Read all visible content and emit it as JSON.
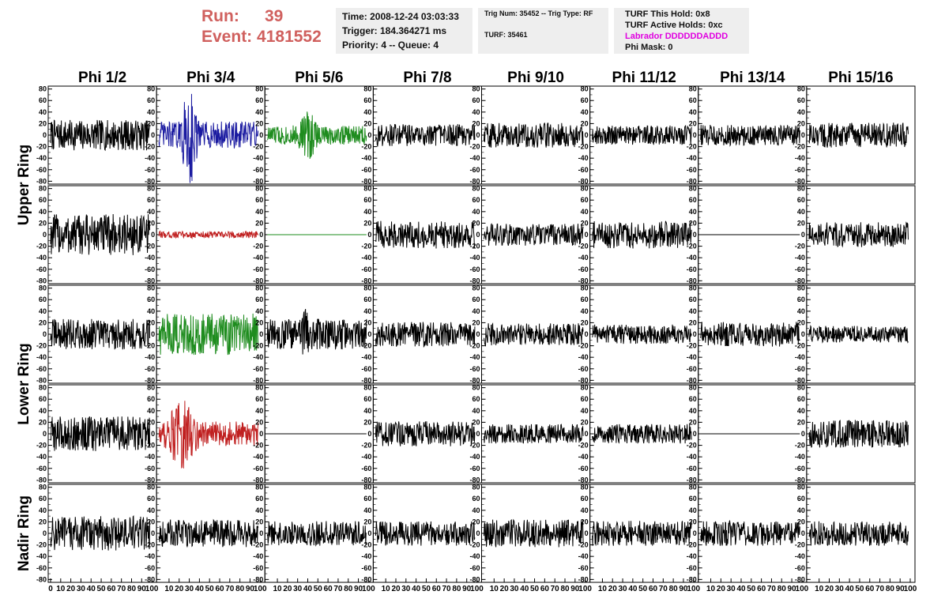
{
  "header": {
    "run_label": "Run:",
    "run_value": "39",
    "event_label": "Event:",
    "event_value": "4181552",
    "time": "Time: 2008-12-24 03:03:33",
    "trigger": "Trigger: 184.364271 ms",
    "priority": "Priority: 4 -- Queue: 4",
    "trig_num": "Trig Num: 35452 -- Trig Type: RF",
    "turf": "TURF: 35461",
    "turf_hold": "TURF This Hold: 0x8",
    "turf_active": "TURF Active Holds: 0xc",
    "labrador": "Labrador DDDDDDADDD",
    "phi_mask": "Phi Mask: 0"
  },
  "colors": {
    "labrador": "#e000e0",
    "run_text": "#d0605e",
    "panel_bg": "#eeeeee"
  },
  "chart_data": {
    "type": "line",
    "columns": [
      "Phi 1/2",
      "Phi 3/4",
      "Phi 5/6",
      "Phi 7/8",
      "Phi 9/10",
      "Phi 11/12",
      "Phi 13/14",
      "Phi 15/16"
    ],
    "ring_labels": [
      {
        "label": "Upper Ring",
        "rows": [
          0,
          1
        ]
      },
      {
        "label": "Lower Ring",
        "rows": [
          2,
          3
        ]
      },
      {
        "label": "Nadir Ring",
        "rows": [
          4,
          4
        ]
      }
    ],
    "ylim": [
      -85,
      85
    ],
    "yticks": [
      -80,
      -60,
      -40,
      -20,
      0,
      20,
      40,
      60,
      80
    ],
    "xlim": [
      0,
      100
    ],
    "xticks": [
      0,
      10,
      20,
      30,
      40,
      50,
      60,
      70,
      80,
      90,
      100
    ],
    "n_samples": 250,
    "rows": [
      [
        {
          "color": "#000000",
          "amplitude": 22,
          "burst": null,
          "flat": false
        },
        {
          "color": "#1a1aa0",
          "amplitude": 20,
          "burst": [
            22,
            38,
            85
          ],
          "flat": false
        },
        {
          "color": "#1e8c1e",
          "amplitude": 14,
          "burst": [
            30,
            50,
            45
          ],
          "flat": false
        },
        {
          "color": "#000000",
          "amplitude": 16,
          "burst": null,
          "flat": false
        },
        {
          "color": "#000000",
          "amplitude": 18,
          "burst": null,
          "flat": false
        },
        {
          "color": "#000000",
          "amplitude": 14,
          "burst": null,
          "flat": false
        },
        {
          "color": "#000000",
          "amplitude": 15,
          "burst": null,
          "flat": false
        },
        {
          "color": "#000000",
          "amplitude": 18,
          "burst": null,
          "flat": false
        }
      ],
      [
        {
          "color": "#000000",
          "amplitude": 30,
          "burst": null,
          "flat": false
        },
        {
          "color": "#c02020",
          "amplitude": 5,
          "burst": null,
          "flat": false
        },
        {
          "color": "#1e8c1e",
          "amplitude": 0,
          "burst": null,
          "flat": true
        },
        {
          "color": "#000000",
          "amplitude": 20,
          "burst": null,
          "flat": false
        },
        {
          "color": "#000000",
          "amplitude": 16,
          "burst": null,
          "flat": false
        },
        {
          "color": "#000000",
          "amplitude": 20,
          "burst": null,
          "flat": false
        },
        {
          "color": "#000000",
          "amplitude": 0,
          "burst": null,
          "flat": true
        },
        {
          "color": "#000000",
          "amplitude": 18,
          "burst": null,
          "flat": false
        }
      ],
      [
        {
          "color": "#000000",
          "amplitude": 22,
          "burst": null,
          "flat": false
        },
        {
          "color": "#1e8c1e",
          "amplitude": 30,
          "burst": null,
          "flat": false
        },
        {
          "color": "#000000",
          "amplitude": 22,
          "burst": [
            30,
            45,
            40
          ],
          "flat": false
        },
        {
          "color": "#000000",
          "amplitude": 18,
          "burst": null,
          "flat": false
        },
        {
          "color": "#000000",
          "amplitude": 16,
          "burst": null,
          "flat": false
        },
        {
          "color": "#000000",
          "amplitude": 14,
          "burst": null,
          "flat": false
        },
        {
          "color": "#000000",
          "amplitude": 18,
          "burst": null,
          "flat": false
        },
        {
          "color": "#000000",
          "amplitude": 12,
          "burst": null,
          "flat": false
        }
      ],
      [
        {
          "color": "#000000",
          "amplitude": 25,
          "burst": null,
          "flat": false
        },
        {
          "color": "#c02020",
          "amplitude": 18,
          "burst": [
            5,
            40,
            55
          ],
          "flat": false
        },
        {
          "color": "#000000",
          "amplitude": 0,
          "burst": null,
          "flat": true
        },
        {
          "color": "#000000",
          "amplitude": 18,
          "burst": null,
          "flat": false
        },
        {
          "color": "#000000",
          "amplitude": 14,
          "burst": null,
          "flat": false
        },
        {
          "color": "#000000",
          "amplitude": 14,
          "burst": null,
          "flat": false
        },
        {
          "color": "#000000",
          "amplitude": 0,
          "burst": null,
          "flat": true
        },
        {
          "color": "#000000",
          "amplitude": 20,
          "burst": null,
          "flat": false
        }
      ],
      [
        {
          "color": "#000000",
          "amplitude": 25,
          "burst": null,
          "flat": false
        },
        {
          "color": "#000000",
          "amplitude": 20,
          "burst": null,
          "flat": false
        },
        {
          "color": "#000000",
          "amplitude": 18,
          "burst": null,
          "flat": false
        },
        {
          "color": "#000000",
          "amplitude": 18,
          "burst": null,
          "flat": false
        },
        {
          "color": "#000000",
          "amplitude": 20,
          "burst": null,
          "flat": false
        },
        {
          "color": "#000000",
          "amplitude": 18,
          "burst": null,
          "flat": false
        },
        {
          "color": "#000000",
          "amplitude": 18,
          "burst": null,
          "flat": false
        },
        {
          "color": "#000000",
          "amplitude": 18,
          "burst": null,
          "flat": false
        }
      ]
    ]
  }
}
